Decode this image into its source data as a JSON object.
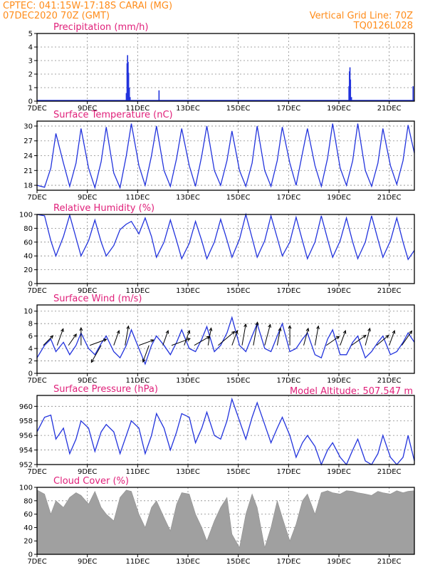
{
  "header": {
    "station": "CPTEC:   041:15W-17:18S   CARAI (MG)",
    "run": "07DEC2020 70Z (GMT)",
    "grid_note": "Vertical Grid Line: 70Z",
    "model_code": "TQ0126L028",
    "model_altitude": "Model Altitude: 507.547 m"
  },
  "colors": {
    "header": "#ff8c1a",
    "title": "#e0207a",
    "series": "#2233dd",
    "bars_precip": "#2233dd",
    "cloud": "#a0a0a0",
    "wind_arrows": "#000000"
  },
  "x_ticks": [
    "7DEC",
    "9DEC",
    "11DEC",
    "13DEC",
    "15DEC",
    "17DEC",
    "19DEC",
    "21DEC"
  ],
  "chart_data": [
    {
      "type": "bar",
      "title": "Precipitation (mm/h)",
      "ylim": [
        0,
        5
      ],
      "yticks": [
        0,
        1,
        2,
        3,
        4,
        5
      ],
      "x_unit": "days since 7DEC",
      "x": [
        3.55,
        3.58,
        3.6,
        3.62,
        3.64,
        3.67,
        3.7,
        4.85,
        12.4,
        12.42,
        12.44,
        12.46,
        12.5,
        14.95
      ],
      "values": [
        0.6,
        2.8,
        3.4,
        2.9,
        2.1,
        1.0,
        0.3,
        0.8,
        1.1,
        2.2,
        2.5,
        1.6,
        0.3,
        1.1
      ]
    },
    {
      "type": "line",
      "title": "Surface Temperature (nC)",
      "ylim": [
        17,
        31
      ],
      "yticks": [
        18,
        21,
        24,
        27,
        30
      ],
      "x_unit": "days since 7DEC",
      "x": [
        0.0,
        0.3,
        0.55,
        0.75,
        1.05,
        1.3,
        1.55,
        1.75,
        2.05,
        2.3,
        2.55,
        2.75,
        3.05,
        3.3,
        3.55,
        3.75,
        4.05,
        4.3,
        4.55,
        4.75,
        5.05,
        5.3,
        5.55,
        5.75,
        6.05,
        6.3,
        6.55,
        6.75,
        7.05,
        7.3,
        7.55,
        7.75,
        8.05,
        8.3,
        8.55,
        8.75,
        9.05,
        9.3,
        9.55,
        9.75,
        10.05,
        10.3,
        10.55,
        10.75,
        11.05,
        11.3,
        11.55,
        11.75,
        12.05,
        12.3,
        12.55,
        12.75,
        13.05,
        13.3,
        13.55,
        13.75,
        14.05,
        14.3,
        14.55,
        14.75,
        15.0
      ],
      "values": [
        18.0,
        17.6,
        21.5,
        28.5,
        22.5,
        17.8,
        22.5,
        29.5,
        21.5,
        17.5,
        22.8,
        29.8,
        20.5,
        17.5,
        24.0,
        30.5,
        22.0,
        18.0,
        24.0,
        30.0,
        21.0,
        17.8,
        23.5,
        29.5,
        22.0,
        17.8,
        24.0,
        30.0,
        21.0,
        18.0,
        23.0,
        29.0,
        21.0,
        17.8,
        22.5,
        30.0,
        21.0,
        17.8,
        23.0,
        29.8,
        22.5,
        18.0,
        24.5,
        29.5,
        22.0,
        17.8,
        23.5,
        30.5,
        21.5,
        18.0,
        23.0,
        30.5,
        21.0,
        17.8,
        22.5,
        29.5,
        22.0,
        18.2,
        23.0,
        30.2,
        24.5
      ]
    },
    {
      "type": "line",
      "title": "Relative Humidity (%)",
      "ylim": [
        0,
        100
      ],
      "yticks": [
        0,
        20,
        40,
        60,
        80,
        100
      ],
      "x_unit": "days since 7DEC",
      "x": [
        0.0,
        0.3,
        0.55,
        0.75,
        1.05,
        1.3,
        1.55,
        1.75,
        2.05,
        2.3,
        2.55,
        2.75,
        3.05,
        3.3,
        3.55,
        3.75,
        4.05,
        4.3,
        4.55,
        4.75,
        5.05,
        5.3,
        5.55,
        5.75,
        6.05,
        6.3,
        6.55,
        6.75,
        7.05,
        7.3,
        7.55,
        7.75,
        8.05,
        8.3,
        8.55,
        8.75,
        9.05,
        9.3,
        9.55,
        9.75,
        10.05,
        10.3,
        10.55,
        10.75,
        11.05,
        11.3,
        11.55,
        11.75,
        12.05,
        12.3,
        12.55,
        12.75,
        13.05,
        13.3,
        13.55,
        13.75,
        14.05,
        14.3,
        14.55,
        14.75,
        15.0
      ],
      "values": [
        100,
        98,
        62,
        40,
        68,
        99,
        66,
        40,
        62,
        92,
        60,
        40,
        55,
        78,
        86,
        90,
        72,
        95,
        68,
        38,
        60,
        92,
        62,
        36,
        58,
        90,
        62,
        36,
        60,
        93,
        63,
        38,
        64,
        100,
        66,
        38,
        62,
        98,
        66,
        40,
        60,
        96,
        62,
        36,
        60,
        98,
        64,
        38,
        62,
        95,
        60,
        36,
        60,
        98,
        64,
        38,
        62,
        95,
        60,
        35,
        48
      ]
    },
    {
      "type": "line",
      "title": "Surface Wind (m/s)",
      "ylim": [
        0,
        11
      ],
      "yticks": [
        0,
        2,
        4,
        6,
        8,
        10
      ],
      "x_unit": "days since 7DEC",
      "x": [
        0.0,
        0.3,
        0.55,
        0.75,
        1.05,
        1.3,
        1.55,
        1.75,
        2.05,
        2.3,
        2.55,
        2.75,
        3.05,
        3.3,
        3.55,
        3.75,
        4.05,
        4.3,
        4.55,
        4.75,
        5.05,
        5.3,
        5.55,
        5.75,
        6.05,
        6.3,
        6.55,
        6.75,
        7.05,
        7.3,
        7.55,
        7.75,
        8.05,
        8.3,
        8.55,
        8.75,
        9.05,
        9.3,
        9.55,
        9.75,
        10.05,
        10.3,
        10.55,
        10.75,
        11.05,
        11.3,
        11.55,
        11.75,
        12.05,
        12.3,
        12.55,
        12.75,
        13.05,
        13.3,
        13.55,
        13.75,
        14.05,
        14.3,
        14.55,
        14.75,
        15.0
      ],
      "values": [
        2.5,
        4.5,
        5.5,
        3.5,
        5.0,
        3.0,
        4.5,
        6.5,
        4.0,
        3.0,
        4.8,
        6.0,
        3.5,
        2.5,
        4.5,
        7.0,
        4.0,
        1.5,
        4.5,
        6.0,
        4.5,
        3.0,
        5.0,
        7.0,
        4.0,
        3.5,
        5.5,
        7.5,
        3.5,
        4.5,
        6.5,
        9.0,
        4.5,
        3.5,
        6.0,
        8.0,
        4.0,
        3.5,
        6.0,
        8.0,
        3.5,
        4.0,
        5.5,
        6.5,
        3.0,
        2.5,
        5.5,
        7.0,
        3.0,
        3.0,
        5.0,
        6.0,
        2.5,
        3.5,
        5.0,
        6.0,
        3.0,
        3.5,
        5.0,
        6.5,
        5.0
      ],
      "arrow_x": [
        0.25,
        0.8,
        1.25,
        1.75,
        2.1,
        2.55,
        3.05,
        3.5,
        4.05,
        4.45,
        5.0,
        5.35,
        5.85,
        6.25,
        6.8,
        7.2,
        7.75,
        8.15,
        8.6,
        9.05,
        9.55,
        10.05,
        10.6,
        11.05,
        11.5,
        12.05,
        12.5,
        13.05,
        13.5,
        14.0,
        14.5
      ],
      "arrow_speed": [
        3.5,
        4.5,
        3.5,
        4.5,
        4.5,
        5.0,
        4.0,
        5.0,
        4.0,
        4.5,
        4.0,
        5.0,
        4.0,
        4.5,
        4.5,
        5.5,
        4.0,
        5.5,
        6.0,
        5.5,
        4.5,
        5.0,
        4.5,
        5.0,
        4.0,
        4.0,
        4.5,
        4.5,
        4.0,
        4.0,
        4.5
      ],
      "arrow_dir_deg": [
        225,
        250,
        235,
        270,
        200,
        60,
        250,
        260,
        200,
        70,
        250,
        200,
        250,
        210,
        260,
        220,
        250,
        260,
        260,
        255,
        260,
        270,
        255,
        260,
        215,
        250,
        215,
        255,
        220,
        250,
        235
      ]
    },
    {
      "type": "line",
      "title": "Surface Pressure (hPa)",
      "ylim": [
        952,
        961.5
      ],
      "yticks": [
        952,
        954,
        956,
        958,
        960
      ],
      "x_unit": "days since 7DEC",
      "x": [
        0.0,
        0.3,
        0.55,
        0.75,
        1.05,
        1.3,
        1.55,
        1.75,
        2.05,
        2.3,
        2.55,
        2.75,
        3.05,
        3.3,
        3.55,
        3.75,
        4.05,
        4.3,
        4.55,
        4.75,
        5.05,
        5.3,
        5.55,
        5.75,
        6.05,
        6.3,
        6.55,
        6.75,
        7.05,
        7.3,
        7.55,
        7.75,
        8.05,
        8.3,
        8.55,
        8.75,
        9.05,
        9.3,
        9.55,
        9.75,
        10.05,
        10.3,
        10.55,
        10.75,
        11.05,
        11.3,
        11.55,
        11.75,
        12.05,
        12.3,
        12.55,
        12.75,
        13.05,
        13.3,
        13.55,
        13.75,
        14.05,
        14.3,
        14.55,
        14.75,
        15.0
      ],
      "values": [
        956.5,
        958.5,
        958.8,
        955.5,
        957.0,
        953.5,
        955.5,
        958.0,
        957.0,
        953.8,
        956.5,
        957.5,
        956.5,
        953.5,
        956.0,
        958.0,
        957.0,
        953.5,
        956.0,
        959.0,
        957.0,
        954.0,
        956.5,
        959.0,
        958.5,
        955.0,
        957.0,
        959.2,
        956.0,
        955.5,
        958.0,
        961.0,
        958.0,
        955.5,
        958.5,
        960.5,
        957.5,
        955.0,
        957.0,
        958.5,
        956.0,
        953.0,
        955.0,
        956.0,
        954.5,
        952.0,
        954.0,
        955.0,
        953.0,
        952.0,
        954.0,
        955.5,
        952.5,
        952.0,
        953.5,
        956.0,
        953.0,
        952.0,
        953.0,
        956.0,
        952.5
      ]
    },
    {
      "type": "area",
      "title": "Cloud Cover (%)",
      "ylim": [
        0,
        100
      ],
      "yticks": [
        0,
        20,
        40,
        60,
        80,
        100
      ],
      "x_unit": "days since 7DEC",
      "x": [
        0.0,
        0.3,
        0.55,
        0.75,
        1.05,
        1.3,
        1.55,
        1.75,
        2.05,
        2.3,
        2.55,
        2.75,
        3.05,
        3.3,
        3.55,
        3.75,
        4.05,
        4.3,
        4.55,
        4.75,
        5.05,
        5.3,
        5.55,
        5.75,
        6.05,
        6.3,
        6.55,
        6.75,
        7.05,
        7.3,
        7.55,
        7.75,
        8.05,
        8.3,
        8.55,
        8.75,
        9.05,
        9.3,
        9.55,
        9.75,
        10.05,
        10.3,
        10.55,
        10.75,
        11.05,
        11.3,
        11.55,
        11.75,
        12.05,
        12.3,
        12.55,
        12.75,
        13.05,
        13.3,
        13.55,
        13.75,
        14.05,
        14.3,
        14.55,
        14.75,
        15.0
      ],
      "values": [
        96,
        90,
        60,
        80,
        70,
        85,
        92,
        88,
        75,
        94,
        70,
        60,
        50,
        85,
        96,
        94,
        60,
        40,
        70,
        80,
        55,
        35,
        75,
        92,
        90,
        60,
        40,
        20,
        50,
        70,
        85,
        30,
        10,
        60,
        90,
        70,
        10,
        40,
        80,
        55,
        20,
        45,
        80,
        90,
        60,
        92,
        95,
        92,
        90,
        95,
        94,
        92,
        90,
        88,
        94,
        92,
        90,
        95,
        92,
        94,
        95
      ]
    }
  ]
}
